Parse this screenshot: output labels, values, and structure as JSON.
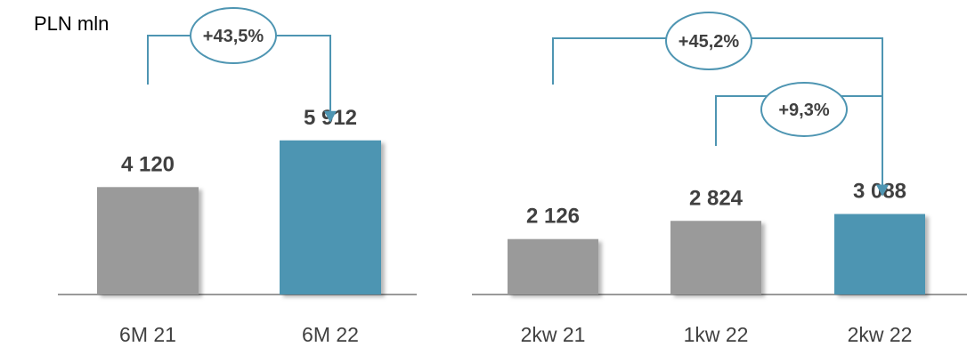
{
  "unit_label": "PLN mln",
  "colors": {
    "previous": "#9a9a9a",
    "current": "#4e95b2",
    "connector": "#4e95b2",
    "axis": "#9a9a9a",
    "text": "#404040"
  },
  "chart_data": [
    {
      "type": "bar",
      "title": "",
      "ylabel": "PLN mln",
      "categories": [
        "6M 21",
        "6M 22"
      ],
      "values": [
        4120,
        5912
      ],
      "value_labels": [
        "4 120",
        "5 912"
      ],
      "highlight": [
        false,
        true
      ],
      "changes": [
        {
          "from": "6M 21",
          "to": "6M 22",
          "label": "+43,5%"
        }
      ]
    },
    {
      "type": "bar",
      "title": "",
      "ylabel": "PLN mln",
      "categories": [
        "2kw 21",
        "1kw 22",
        "2kw 22"
      ],
      "values": [
        2126,
        2824,
        3088
      ],
      "value_labels": [
        "2 126",
        "2 824",
        "3 088"
      ],
      "highlight": [
        false,
        false,
        true
      ],
      "changes": [
        {
          "from": "2kw 21",
          "to": "2kw 22",
          "label": "+45,2%"
        },
        {
          "from": "1kw 22",
          "to": "2kw 22",
          "label": "+9,3%"
        }
      ]
    }
  ]
}
